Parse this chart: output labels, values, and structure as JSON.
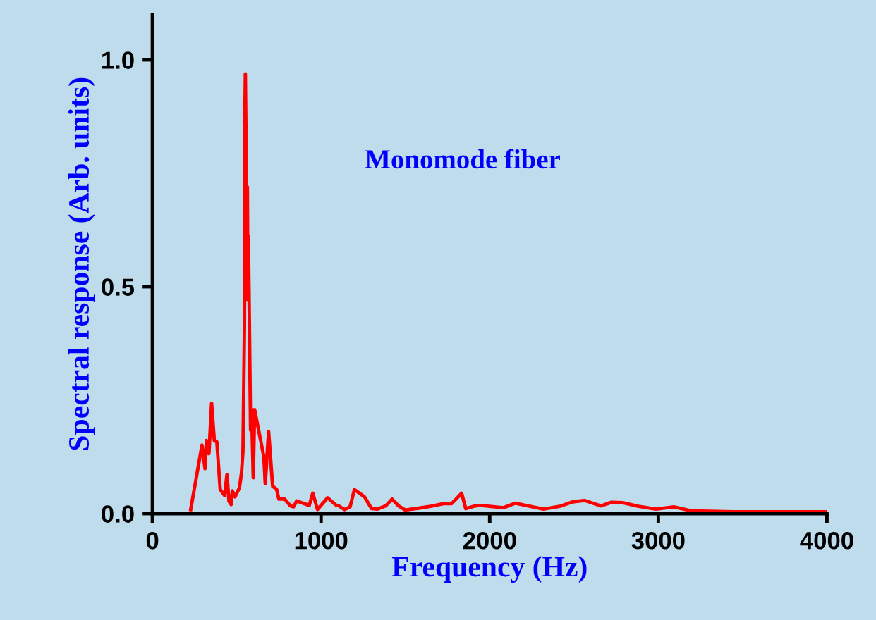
{
  "chart_data": {
    "type": "line",
    "xlabel": "Frequency (Hz)",
    "ylabel": "Spectral response (Arb. units)",
    "annotations": [
      "Monomode fiber"
    ],
    "xlim": [
      0,
      4000
    ],
    "xticks": [
      0,
      1000,
      2000,
      3000,
      4000
    ],
    "ylim": [
      0,
      1.1
    ],
    "yticks": [
      {
        "value": 0,
        "label": "0.0"
      },
      {
        "value": 0.5,
        "label": "0.5"
      },
      {
        "value": 1.0,
        "label": "1.0"
      }
    ],
    "grid": false,
    "legend": false,
    "marker": "none",
    "line_style": "solid",
    "series": [
      {
        "color": "#ff0000",
        "x": [
          227,
          294,
          312,
          320,
          335,
          351,
          367,
          382,
          402,
          428,
          442,
          454,
          467,
          474,
          490,
          516,
          528,
          537,
          546,
          548,
          551,
          555,
          558,
          563,
          566,
          569,
          576,
          582,
          588,
          598,
          606,
          661,
          669,
          689,
          713,
          736,
          750,
          784,
          819,
          837,
          856,
          930,
          951,
          979,
          1039,
          1088,
          1105,
          1139,
          1172,
          1198,
          1258,
          1300,
          1335,
          1383,
          1421,
          1460,
          1499,
          1579,
          1649,
          1726,
          1774,
          1834,
          1858,
          1913,
          1948,
          2081,
          2151,
          2318,
          2415,
          2492,
          2562,
          2660,
          2722,
          2792,
          2883,
          2987,
          3092,
          3197,
          3448,
          3615,
          4000
        ],
        "values": [
          0.009,
          0.151,
          0.099,
          0.161,
          0.132,
          0.243,
          0.161,
          0.158,
          0.053,
          0.04,
          0.086,
          0.027,
          0.02,
          0.05,
          0.037,
          0.057,
          0.089,
          0.138,
          0.42,
          0.87,
          0.969,
          0.818,
          0.472,
          0.72,
          0.498,
          0.612,
          0.387,
          0.184,
          0.229,
          0.079,
          0.229,
          0.125,
          0.066,
          0.181,
          0.06,
          0.054,
          0.032,
          0.032,
          0.017,
          0.015,
          0.028,
          0.018,
          0.045,
          0.009,
          0.035,
          0.019,
          0.017,
          0.009,
          0.015,
          0.053,
          0.037,
          0.011,
          0.01,
          0.017,
          0.032,
          0.017,
          0.008,
          0.012,
          0.016,
          0.022,
          0.022,
          0.045,
          0.011,
          0.017,
          0.018,
          0.013,
          0.023,
          0.01,
          0.016,
          0.026,
          0.029,
          0.017,
          0.025,
          0.024,
          0.016,
          0.01,
          0.015,
          0.006,
          0.004,
          0.004,
          0.004
        ]
      }
    ]
  }
}
